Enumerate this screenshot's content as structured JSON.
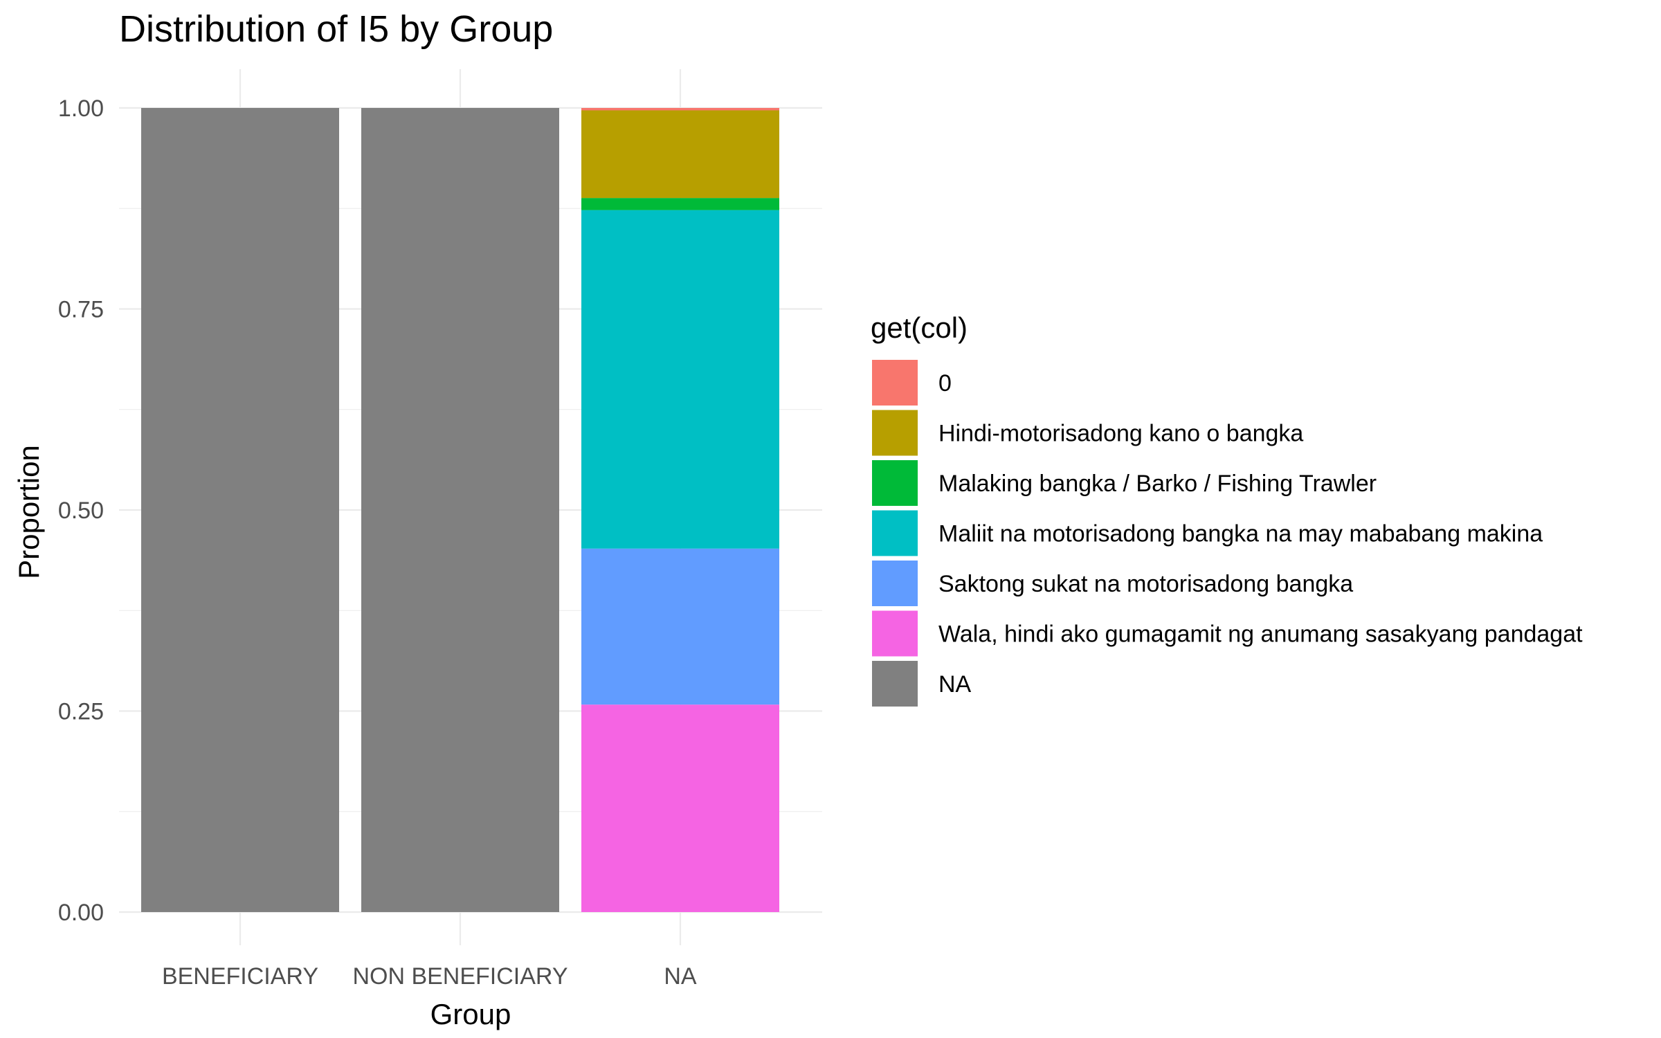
{
  "chart_data": {
    "type": "bar",
    "stacked": true,
    "title": "Distribution of I5 by Group",
    "xlabel": "Group",
    "ylabel": "Proportion",
    "ylim": [
      0,
      1
    ],
    "yticks": [
      "0.00",
      "0.25",
      "0.50",
      "0.75",
      "1.00"
    ],
    "ytick_values": [
      0,
      0.25,
      0.5,
      0.75,
      1.0
    ],
    "categories": [
      "BENEFICIARY",
      "NON BENEFICIARY",
      "NA"
    ],
    "legend_title": "get(col)",
    "legend_position": "right",
    "grid": true,
    "series": [
      {
        "name": "0",
        "color": "#F8766D",
        "values": [
          0,
          0,
          0.003
        ]
      },
      {
        "name": "Hindi-motorisadong kano o bangka",
        "color": "#B79F00",
        "values": [
          0,
          0,
          0.109
        ]
      },
      {
        "name": "Malaking bangka / Barko / Fishing Trawler",
        "color": "#00BA38",
        "values": [
          0,
          0,
          0.015
        ]
      },
      {
        "name": "Maliit na motorisadong bangka na may mababang makina",
        "color": "#00BFC4",
        "values": [
          0,
          0,
          0.421
        ]
      },
      {
        "name": "Saktong sukat na motorisadong bangka",
        "color": "#619CFF",
        "values": [
          0,
          0,
          0.194
        ]
      },
      {
        "name": "Wala, hindi ako gumagamit ng anumang sasakyang pandagat",
        "color": "#F564E3",
        "values": [
          0,
          0,
          0.258
        ]
      },
      {
        "name": "NA",
        "color": "#808080",
        "values": [
          1.0,
          1.0,
          0
        ]
      }
    ]
  }
}
